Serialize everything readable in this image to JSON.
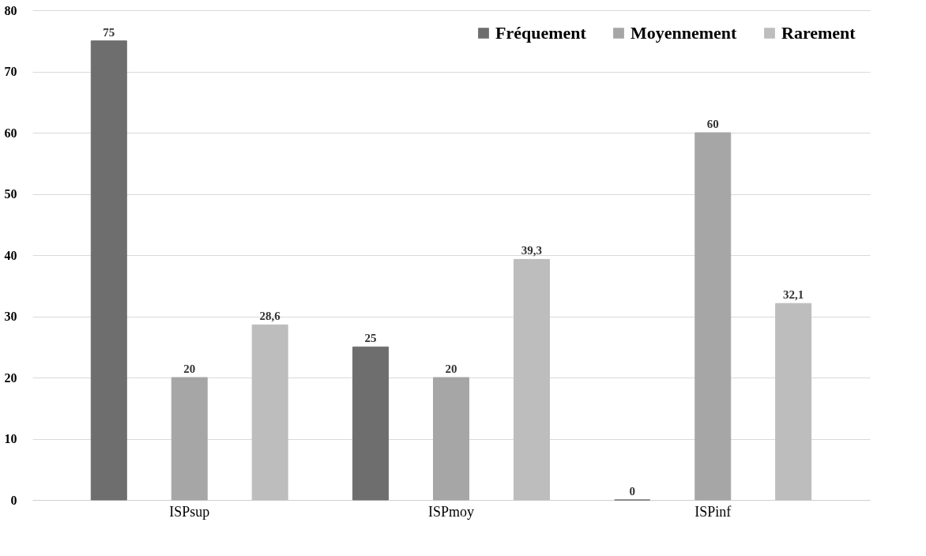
{
  "chart_data": {
    "type": "bar",
    "categories": [
      "ISPsup",
      "ISPmoy",
      "ISPinf"
    ],
    "series": [
      {
        "name": "Fréquement",
        "color": "#6e6e6e",
        "values": [
          75,
          25,
          0
        ],
        "value_labels": [
          "75",
          "25",
          "0"
        ]
      },
      {
        "name": "Moyennement",
        "color": "#a6a6a6",
        "values": [
          20,
          20,
          60
        ],
        "value_labels": [
          "20",
          "20",
          "60"
        ]
      },
      {
        "name": "Rarement",
        "color": "#bdbdbd",
        "values": [
          28.6,
          39.3,
          32.1
        ],
        "value_labels": [
          "28,6",
          "39,3",
          "32,1"
        ]
      }
    ],
    "ylim": [
      0,
      80
    ],
    "yticks": [
      0,
      10,
      20,
      30,
      40,
      50,
      60,
      70,
      80
    ],
    "grid": "y",
    "legend": "top right"
  }
}
